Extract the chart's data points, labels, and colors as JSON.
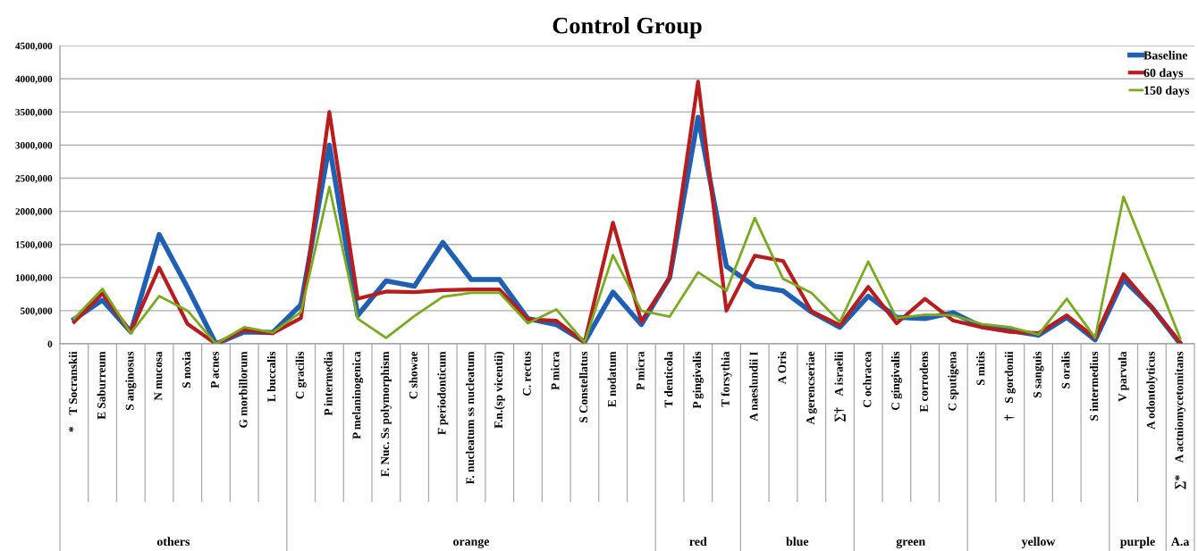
{
  "chart_data": {
    "type": "line",
    "title": "Control Group",
    "categories": [
      "T Socranskii",
      "E Saburreum",
      "S anginosus",
      "N mucosa",
      "S noxia",
      "P acnes",
      "G morbillorum",
      "L buccalis",
      "C gracilis",
      "P intermedia",
      "P melaninogenica",
      "F. Nuc. Ss polymorphism",
      "C showae",
      "F periodonticum",
      "F. nucleatum ss nucleatum",
      "F.n.(sp vicentii)",
      "C. rectus",
      "P micra",
      "S Constellatus",
      "E nodatum",
      "P micra",
      "T denticola",
      "P gingivalis",
      "T forsythia",
      "A naeslundii I",
      "A Oris",
      "A gerencseriae",
      "A israelii",
      "C ochracea",
      "C gingivalis",
      "E corrodens",
      "C sputigena",
      "S mitis",
      "S gordonii",
      "S sanguis",
      "S oralis",
      "S intermedius",
      "V parvula",
      "A odontolyticus",
      "A actniomycetomitans"
    ],
    "series": [
      {
        "name": "Baseline",
        "color": "#1f5fb4",
        "values": [
          370000,
          660000,
          180000,
          1650000,
          850000,
          0,
          180000,
          170000,
          590000,
          3000000,
          430000,
          950000,
          870000,
          1530000,
          970000,
          970000,
          380000,
          290000,
          30000,
          780000,
          290000,
          1000000,
          3420000,
          1170000,
          870000,
          800000,
          480000,
          250000,
          720000,
          400000,
          380000,
          470000,
          260000,
          200000,
          130000,
          400000,
          60000,
          970000,
          550000,
          0
        ]
      },
      {
        "name": "60 days",
        "color": "#b81c1c",
        "values": [
          330000,
          760000,
          180000,
          1150000,
          300000,
          0,
          210000,
          160000,
          390000,
          3500000,
          680000,
          790000,
          780000,
          810000,
          820000,
          820000,
          370000,
          350000,
          20000,
          1830000,
          340000,
          1000000,
          3960000,
          500000,
          1330000,
          1250000,
          490000,
          280000,
          860000,
          310000,
          680000,
          350000,
          250000,
          180000,
          160000,
          430000,
          90000,
          1050000,
          550000,
          20000
        ]
      },
      {
        "name": "150 days",
        "color": "#7aab1e",
        "values": [
          380000,
          830000,
          160000,
          720000,
          500000,
          0,
          250000,
          170000,
          480000,
          2370000,
          380000,
          90000,
          420000,
          710000,
          770000,
          770000,
          310000,
          520000,
          20000,
          1340000,
          500000,
          410000,
          1080000,
          800000,
          1900000,
          980000,
          770000,
          330000,
          1240000,
          390000,
          440000,
          430000,
          300000,
          250000,
          140000,
          680000,
          90000,
          2220000,
          1160000,
          80000
        ]
      }
    ],
    "ylim": [
      0,
      4500000
    ],
    "yticks": [
      0,
      {
        "value": 500000,
        "label": "500,000"
      },
      {
        "value": 1000000,
        "label": "1000,000"
      },
      {
        "value": 1500000,
        "label": "1500,000"
      },
      {
        "value": 2000000,
        "label": "2000,000"
      },
      {
        "value": 2500000,
        "label": "2500,000"
      },
      {
        "value": 3000000,
        "label": "3000,000"
      },
      {
        "value": 3500000,
        "label": "3500,000"
      },
      {
        "value": 4000000,
        "label": "4000,000"
      },
      {
        "value": 4500000,
        "label": "4500,000"
      }
    ],
    "grid": "y",
    "legend": "top right",
    "marker": "none",
    "line_style": "solid",
    "annotations": [
      "*",
      "∑†",
      "†",
      "∑*",
      "others",
      "orange",
      "red",
      "blue",
      "green",
      "yellow",
      "purple",
      "A.a"
    ]
  }
}
